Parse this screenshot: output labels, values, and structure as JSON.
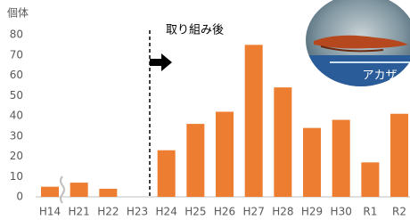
{
  "chart_data": {
    "type": "bar",
    "y_label": "個体",
    "annotation": "取り組み後",
    "photo_label": "アカザ",
    "categories": [
      "H14",
      "H21",
      "H22",
      "H23",
      "H24",
      "H25",
      "H26",
      "H27",
      "H28",
      "H29",
      "H30",
      "R1",
      "R2"
    ],
    "values": [
      5,
      7,
      4,
      null,
      23,
      36,
      42,
      75,
      54,
      34,
      38,
      17,
      41
    ],
    "color": "#ed7d31",
    "ylim": [
      0,
      80
    ],
    "yticks": [
      0,
      10,
      20,
      30,
      40,
      50,
      60,
      70,
      80
    ],
    "grid": false
  }
}
